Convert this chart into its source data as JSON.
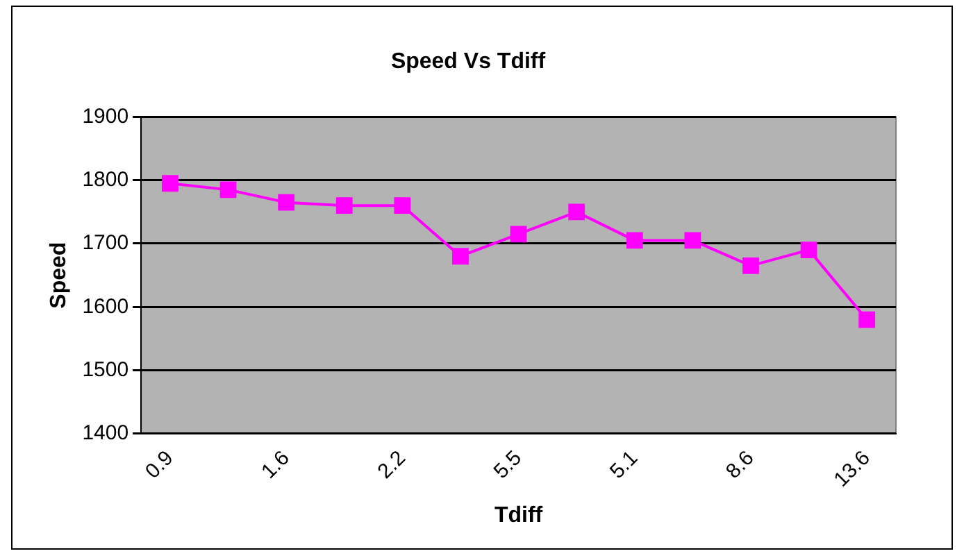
{
  "chart_data": {
    "type": "line",
    "title": "Speed Vs Tdiff",
    "xlabel": "Tdiff",
    "ylabel": "Speed",
    "categories": [
      "0.9",
      null,
      "1.6",
      null,
      "2.2",
      null,
      "5.5",
      null,
      "5.1",
      null,
      "8.6",
      null,
      "13.6"
    ],
    "series": [
      {
        "color": "#ff00ff",
        "values": [
          1795,
          1785,
          1765,
          1760,
          1760,
          1680,
          1715,
          1750,
          1705,
          1705,
          1665,
          1690,
          1580
        ]
      }
    ],
    "ylim": [
      1400,
      1900
    ],
    "yticks": [
      1400,
      1500,
      1600,
      1700,
      1800,
      1900
    ],
    "grid": "y",
    "marker": "square",
    "line_style": "solid",
    "legend": false
  }
}
